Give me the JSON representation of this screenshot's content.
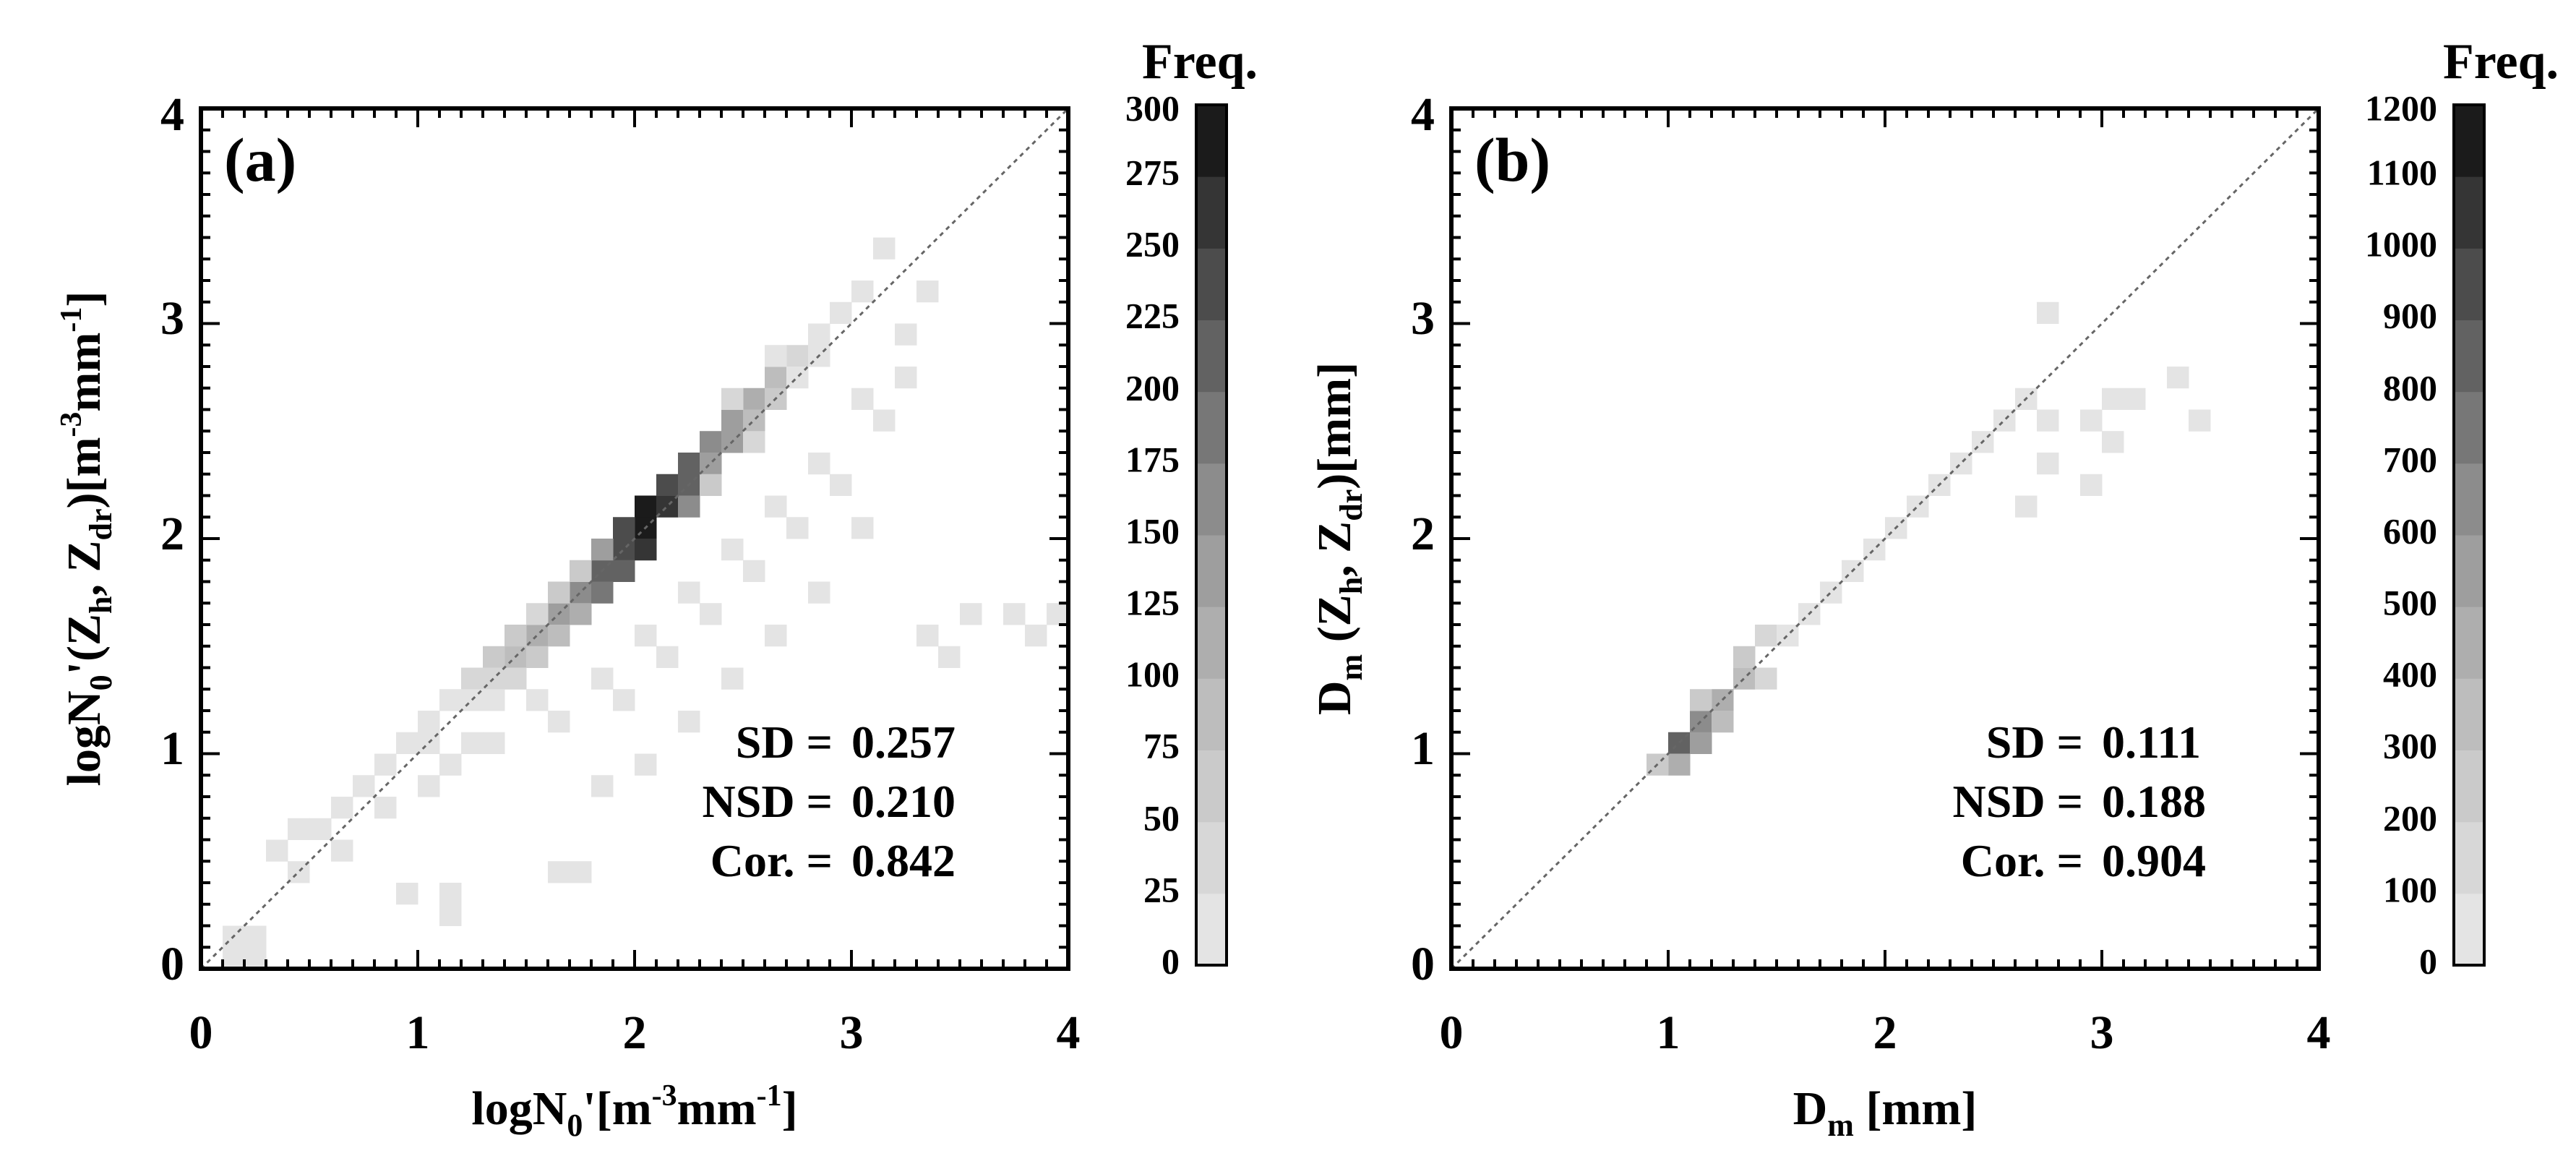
{
  "chart_data": [
    {
      "type": "heatmap",
      "panel_label": "(a)",
      "xlabel": "logN₀'[m⁻³mm⁻¹]",
      "ylabel": "logN₀'(Zₕ, Z_dr)[m⁻³mm⁻¹]",
      "xlabel_parts": {
        "main": "logN",
        "sub0": "0",
        "mid": "'[m",
        "sup1": "-3",
        "mm": "mm",
        "sup2": "-1",
        "end": "]"
      },
      "ylabel_parts": {
        "main": "logN",
        "sub0": "0",
        "mid": "'(Z",
        "subh": "h",
        "comma": ", Z",
        "subdr": "dr",
        "close": ")[m",
        "sup1": "-3",
        "mm": "mm",
        "sup2": "-1",
        "end": "]"
      },
      "xlim": [
        0,
        4
      ],
      "ylim": [
        0,
        4
      ],
      "xticks": [
        "0",
        "1",
        "2",
        "3",
        "4"
      ],
      "yticks": [
        "0",
        "1",
        "2",
        "3",
        "4"
      ],
      "bin_width": 0.1,
      "diagonal": true,
      "stats": [
        {
          "label": "SD =",
          "value": "0.257"
        },
        {
          "label": "NSD =",
          "value": "0.210"
        },
        {
          "label": "Cor. =",
          "value": "0.842"
        }
      ],
      "colorbar": {
        "title": "Freq.",
        "levels": [
          "0",
          "25",
          "50",
          "75",
          "100",
          "125",
          "150",
          "175",
          "200",
          "225",
          "250",
          "275",
          "300"
        ],
        "colors": [
          "#e4e4e4",
          "#d7d7d7",
          "#cacaca",
          "#bdbdbd",
          "#aeaeae",
          "#9e9e9e",
          "#8c8c8c",
          "#777777",
          "#626262",
          "#4c4c4c",
          "#353535",
          "#1b1b1b"
        ]
      },
      "bins": [
        [
          0.1,
          0.0,
          1
        ],
        [
          0.2,
          0.0,
          1
        ],
        [
          0.1,
          0.1,
          1
        ],
        [
          0.2,
          0.1,
          1
        ],
        [
          0.4,
          0.4,
          1
        ],
        [
          0.9,
          0.3,
          1
        ],
        [
          1.1,
          0.2,
          1
        ],
        [
          1.1,
          0.3,
          1
        ],
        [
          1.6,
          0.4,
          1
        ],
        [
          1.7,
          0.4,
          1
        ],
        [
          3.5,
          1.6,
          1
        ],
        [
          3.4,
          1.4,
          1
        ],
        [
          3.7,
          1.6,
          1
        ],
        [
          3.8,
          1.5,
          1
        ],
        [
          3.9,
          1.6,
          1
        ],
        [
          3.3,
          1.5,
          1
        ],
        [
          0.5,
          0.6,
          1
        ],
        [
          0.6,
          0.7,
          1
        ],
        [
          0.3,
          0.5,
          1
        ],
        [
          0.7,
          0.8,
          1
        ],
        [
          0.8,
          0.9,
          1
        ],
        [
          0.9,
          1.0,
          1
        ],
        [
          1.4,
          1.4,
          4
        ],
        [
          1.5,
          1.5,
          5
        ],
        [
          1.6,
          1.6,
          6
        ],
        [
          1.7,
          1.7,
          7
        ],
        [
          1.8,
          1.8,
          9
        ],
        [
          1.9,
          1.9,
          10
        ],
        [
          2.0,
          2.0,
          12
        ],
        [
          2.0,
          2.1,
          12
        ],
        [
          2.1,
          2.1,
          11
        ],
        [
          2.1,
          2.2,
          10
        ],
        [
          2.2,
          2.3,
          9
        ],
        [
          2.3,
          2.4,
          7
        ],
        [
          2.4,
          2.5,
          6
        ],
        [
          2.5,
          2.6,
          5
        ],
        [
          2.6,
          2.7,
          4
        ],
        [
          1.3,
          1.4,
          3
        ],
        [
          1.5,
          1.4,
          3
        ],
        [
          1.8,
          1.7,
          8
        ],
        [
          1.9,
          1.8,
          9
        ],
        [
          1.9,
          2.0,
          10
        ],
        [
          2.0,
          1.9,
          11
        ],
        [
          2.2,
          2.2,
          9
        ],
        [
          2.4,
          2.4,
          6
        ],
        [
          2.6,
          2.6,
          3
        ],
        [
          2.7,
          2.8,
          2
        ],
        [
          2.8,
          2.9,
          1
        ],
        [
          1.2,
          1.3,
          2
        ],
        [
          1.3,
          1.3,
          2
        ],
        [
          1.4,
          1.5,
          3
        ],
        [
          1.6,
          1.5,
          4
        ],
        [
          1.7,
          1.6,
          5
        ],
        [
          1.8,
          1.9,
          6
        ],
        [
          2.2,
          2.1,
          7
        ],
        [
          2.3,
          2.3,
          6
        ],
        [
          2.5,
          2.5,
          4
        ],
        [
          1.0,
          1.1,
          1
        ],
        [
          1.1,
          1.2,
          1
        ],
        [
          1.2,
          1.2,
          1
        ],
        [
          1.3,
          1.2,
          1
        ],
        [
          1.4,
          1.3,
          2
        ],
        [
          1.5,
          1.6,
          2
        ],
        [
          1.6,
          1.7,
          3
        ],
        [
          1.7,
          1.8,
          3
        ],
        [
          2.3,
          2.2,
          3
        ],
        [
          2.4,
          2.6,
          2
        ],
        [
          2.5,
          2.4,
          2
        ],
        [
          2.6,
          2.8,
          1
        ],
        [
          2.7,
          2.7,
          1
        ],
        [
          2.8,
          2.8,
          1
        ],
        [
          2.9,
          3.0,
          1
        ],
        [
          3.0,
          3.1,
          1
        ],
        [
          3.1,
          3.3,
          1
        ],
        [
          0.4,
          0.6,
          1
        ],
        [
          0.6,
          0.5,
          1
        ],
        [
          0.8,
          0.7,
          1
        ],
        [
          1.0,
          0.8,
          1
        ],
        [
          1.0,
          1.0,
          1
        ],
        [
          1.2,
          1.0,
          1
        ],
        [
          1.5,
          1.2,
          1
        ],
        [
          1.8,
          1.3,
          1
        ],
        [
          2.0,
          1.5,
          1
        ],
        [
          2.2,
          1.7,
          1
        ],
        [
          2.4,
          1.9,
          1
        ],
        [
          2.6,
          2.1,
          1
        ],
        [
          2.8,
          2.3,
          1
        ],
        [
          3.0,
          2.6,
          1
        ],
        [
          3.2,
          2.9,
          1
        ],
        [
          3.3,
          3.1,
          1
        ],
        [
          1.1,
          0.9,
          1
        ],
        [
          1.3,
          1.0,
          1
        ],
        [
          1.6,
          1.1,
          1
        ],
        [
          1.9,
          1.2,
          1
        ],
        [
          2.1,
          1.4,
          1
        ],
        [
          2.3,
          1.6,
          1
        ],
        [
          2.5,
          1.8,
          1
        ],
        [
          2.7,
          2.0,
          1
        ],
        [
          2.9,
          2.2,
          1
        ],
        [
          3.1,
          2.5,
          1
        ],
        [
          3.2,
          2.7,
          1
        ],
        [
          3.0,
          2.0,
          1
        ],
        [
          2.8,
          1.7,
          1
        ],
        [
          2.6,
          1.5,
          1
        ],
        [
          2.4,
          1.3,
          1
        ],
        [
          2.2,
          1.1,
          1
        ],
        [
          2.0,
          0.9,
          1
        ],
        [
          1.8,
          0.8,
          1
        ]
      ]
    },
    {
      "type": "heatmap",
      "panel_label": "(b)",
      "xlabel": "Dₘ [mm]",
      "ylabel": "Dₘ (Zₕ, Z_dr)[mm]",
      "xlabel_parts": {
        "main": "D",
        "sub": "m",
        "end": " [mm]"
      },
      "ylabel_parts": {
        "main": "D",
        "sub": "m",
        "mid": " (Z",
        "subh": "h",
        "comma": ", Z",
        "subdr": "dr",
        "end": ")[mm]"
      },
      "xlim": [
        0,
        4
      ],
      "ylim": [
        0,
        4
      ],
      "xticks": [
        "0",
        "1",
        "2",
        "3",
        "4"
      ],
      "yticks": [
        "0",
        "1",
        "2",
        "3",
        "4"
      ],
      "bin_width": 0.1,
      "diagonal": true,
      "stats": [
        {
          "label": "SD =",
          "value": "0.111"
        },
        {
          "label": "NSD =",
          "value": "0.188"
        },
        {
          "label": "Cor. =",
          "value": "0.904"
        }
      ],
      "colorbar": {
        "title": "Freq.",
        "levels": [
          "0",
          "100",
          "200",
          "300",
          "400",
          "500",
          "600",
          "700",
          "800",
          "900",
          "1000",
          "1100",
          "1200"
        ],
        "colors": [
          "#e4e4e4",
          "#d7d7d7",
          "#cacaca",
          "#bdbdbd",
          "#aeaeae",
          "#9e9e9e",
          "#8c8c8c",
          "#777777",
          "#626262",
          "#4c4c4c",
          "#353535",
          "#1b1b1b"
        ]
      },
      "bins": [
        [
          1.0,
          1.0,
          9
        ],
        [
          1.1,
          1.1,
          7
        ],
        [
          1.1,
          1.0,
          6
        ],
        [
          1.0,
          0.9,
          5
        ],
        [
          1.2,
          1.2,
          5
        ],
        [
          1.3,
          1.3,
          4
        ],
        [
          0.9,
          0.9,
          3
        ],
        [
          1.2,
          1.1,
          4
        ],
        [
          1.1,
          1.2,
          3
        ],
        [
          1.3,
          1.4,
          3
        ],
        [
          1.4,
          1.5,
          2
        ],
        [
          1.4,
          1.3,
          2
        ],
        [
          1.5,
          1.5,
          1
        ],
        [
          1.6,
          1.6,
          1
        ],
        [
          1.7,
          1.7,
          1
        ],
        [
          1.8,
          1.8,
          1
        ],
        [
          1.9,
          1.9,
          1
        ],
        [
          2.0,
          2.0,
          1
        ],
        [
          2.1,
          2.1,
          1
        ],
        [
          2.2,
          2.2,
          1
        ],
        [
          2.3,
          2.3,
          1
        ],
        [
          2.4,
          2.4,
          1
        ],
        [
          2.5,
          2.5,
          1
        ],
        [
          2.6,
          2.6,
          1
        ],
        [
          2.7,
          3.0,
          1
        ],
        [
          2.7,
          2.5,
          1
        ],
        [
          2.7,
          2.3,
          1
        ],
        [
          2.6,
          2.1,
          1
        ],
        [
          2.9,
          2.5,
          1
        ],
        [
          3.0,
          2.4,
          1
        ],
        [
          3.0,
          2.6,
          1
        ],
        [
          3.1,
          2.6,
          1
        ],
        [
          3.3,
          2.7,
          1
        ],
        [
          3.4,
          2.5,
          1
        ],
        [
          2.9,
          2.2,
          1
        ]
      ]
    }
  ]
}
